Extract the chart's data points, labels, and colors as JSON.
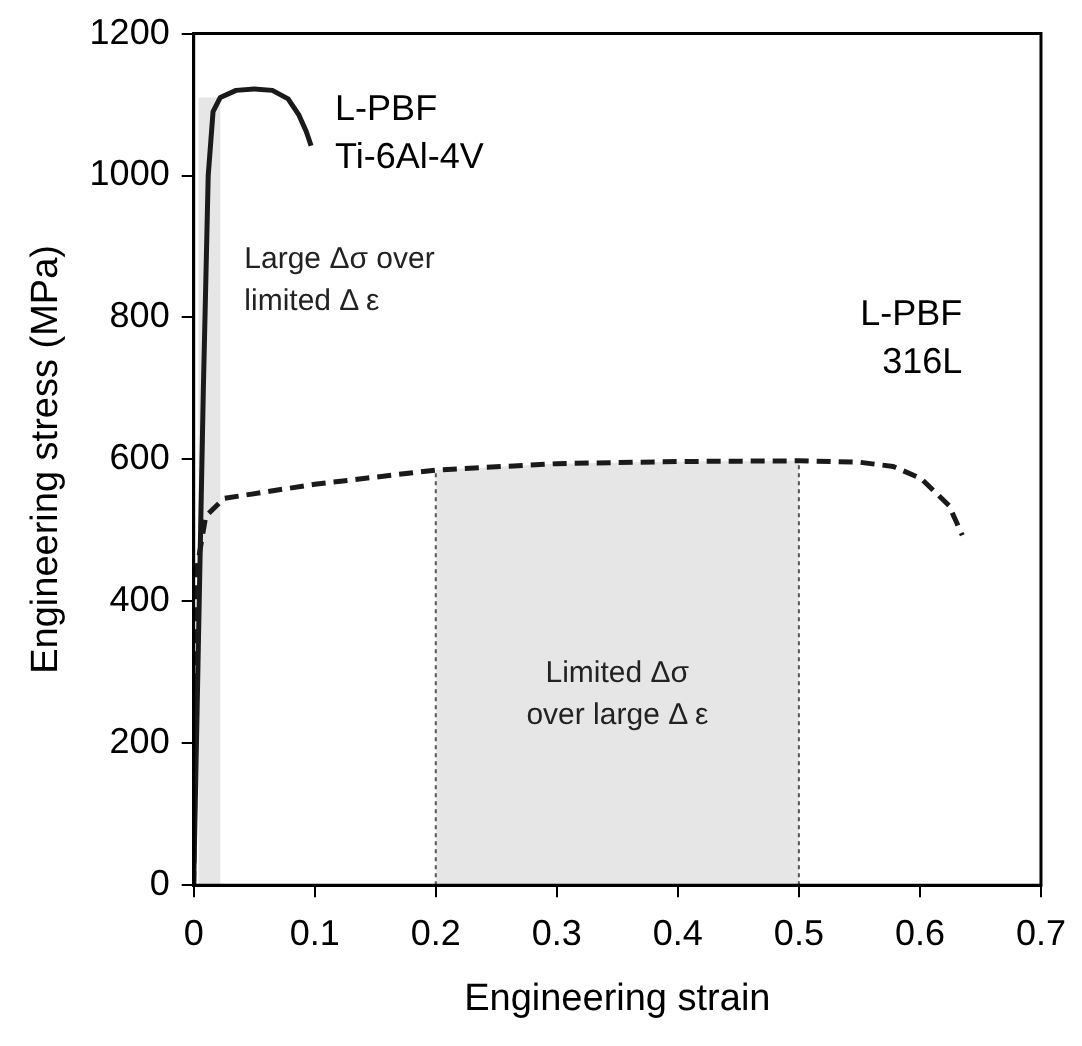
{
  "chart_data": {
    "type": "line",
    "xlabel": "Engineering strain",
    "ylabel": "Engineering stress (MPa)",
    "xlim": [
      0,
      0.7
    ],
    "xticks": [
      0,
      0.1,
      0.2,
      0.3,
      0.4,
      0.5,
      0.6,
      0.7
    ],
    "ylim": [
      0,
      1200
    ],
    "yticks": [
      0,
      200,
      400,
      600,
      800,
      1000,
      1200
    ],
    "grid": false,
    "legend": false,
    "marker": "none",
    "series": [
      {
        "name": "L-PBF\nTi-6Al-4V",
        "color": "#1a1a1a",
        "line_style": "solid",
        "x": [
          0,
          0.004,
          0.008,
          0.012,
          0.016,
          0.022,
          0.035,
          0.05,
          0.065,
          0.078,
          0.087,
          0.093,
          0.097
        ],
        "values": [
          0,
          350,
          700,
          1000,
          1090,
          1110,
          1120,
          1122,
          1120,
          1108,
          1085,
          1062,
          1042
        ]
      },
      {
        "name": "L-PBF\n316L",
        "color": "#1a1a1a",
        "line_style": "dashed",
        "x": [
          0,
          0.003,
          0.01,
          0.025,
          0.1,
          0.2,
          0.3,
          0.4,
          0.5,
          0.55,
          0.578,
          0.601,
          0.624,
          0.635
        ],
        "values": [
          0,
          450,
          520,
          545,
          565,
          585,
          594,
          597,
          598,
          596,
          590,
          573,
          535,
          493
        ]
      }
    ],
    "bands": [
      {
        "axis": "x",
        "from": 0.004,
        "to": 0.022,
        "label": "Large Δσ over\nlimited Δ ε",
        "color": "#e6e6e6"
      },
      {
        "axis": "x",
        "from": 0.2,
        "to": 0.5,
        "label": "Limited Δσ\nover large Δ ε",
        "color": "#e6e6e6"
      }
    ],
    "ref_lines": [
      {
        "axis": "x",
        "value": 0.2,
        "color": "#555555",
        "line_style": "dotted"
      },
      {
        "axis": "x",
        "value": 0.5,
        "color": "#555555",
        "line_style": "dotted"
      }
    ]
  }
}
